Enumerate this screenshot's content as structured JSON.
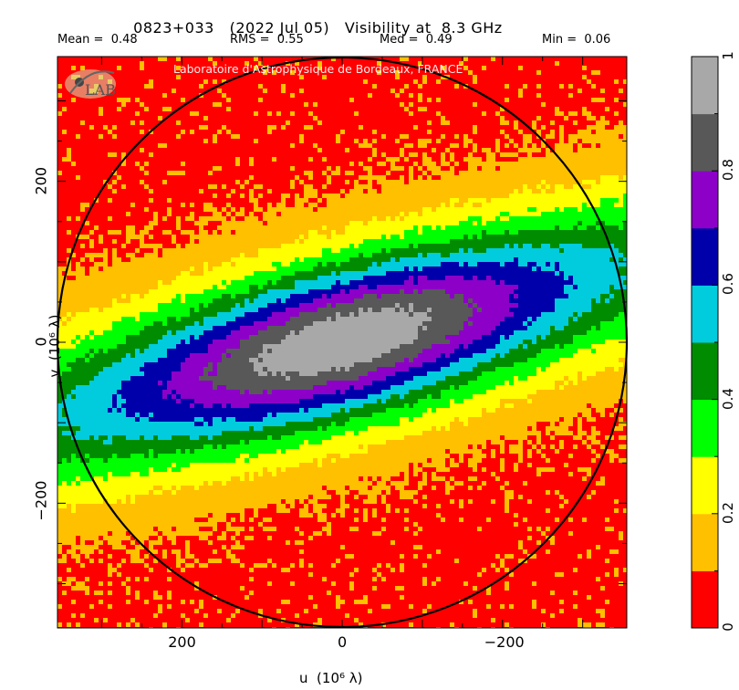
{
  "header": {
    "source": "0823+033",
    "date": "(2022 Jul 05)",
    "quantity": "Visibility at  8.3 GHz"
  },
  "stats": {
    "mean": "Mean =  0.48",
    "rms": "RMS =  0.55",
    "med": "Med =  0.49",
    "min": "Min =  0.06"
  },
  "credit": "Laboratoire d'Astrophysique de Bordeaux, FRANCE",
  "logo_text": "LAB",
  "chart_data": {
    "type": "heatmap",
    "xlabel": "u  (10⁶ λ)",
    "ylabel": "v  (10⁶ λ)",
    "xlim": [
      355,
      -355
    ],
    "ylim": [
      -355,
      355
    ],
    "x_ticks": [
      "200",
      "0",
      "−200"
    ],
    "y_ticks": [
      "200",
      "0",
      "−200"
    ],
    "colorbar_ticks": [
      "0",
      "0.2",
      "0.4",
      "0.6",
      "0.8",
      "1"
    ],
    "levels": [
      {
        "from": 0.0,
        "to": 0.1,
        "color": "#ff0000"
      },
      {
        "from": 0.1,
        "to": 0.2,
        "color": "#ffc000"
      },
      {
        "from": 0.2,
        "to": 0.3,
        "color": "#ffff00"
      },
      {
        "from": 0.3,
        "to": 0.4,
        "color": "#00ff00"
      },
      {
        "from": 0.4,
        "to": 0.5,
        "color": "#008c00"
      },
      {
        "from": 0.5,
        "to": 0.6,
        "color": "#00ccdd"
      },
      {
        "from": 0.6,
        "to": 0.7,
        "color": "#0000aa"
      },
      {
        "from": 0.7,
        "to": 0.8,
        "color": "#8c00c8"
      },
      {
        "from": 0.8,
        "to": 0.9,
        "color": "#585858"
      },
      {
        "from": 0.9,
        "to": 1.0,
        "color": "#a8a8a8"
      }
    ],
    "uv_coverage_radius": 355
  }
}
